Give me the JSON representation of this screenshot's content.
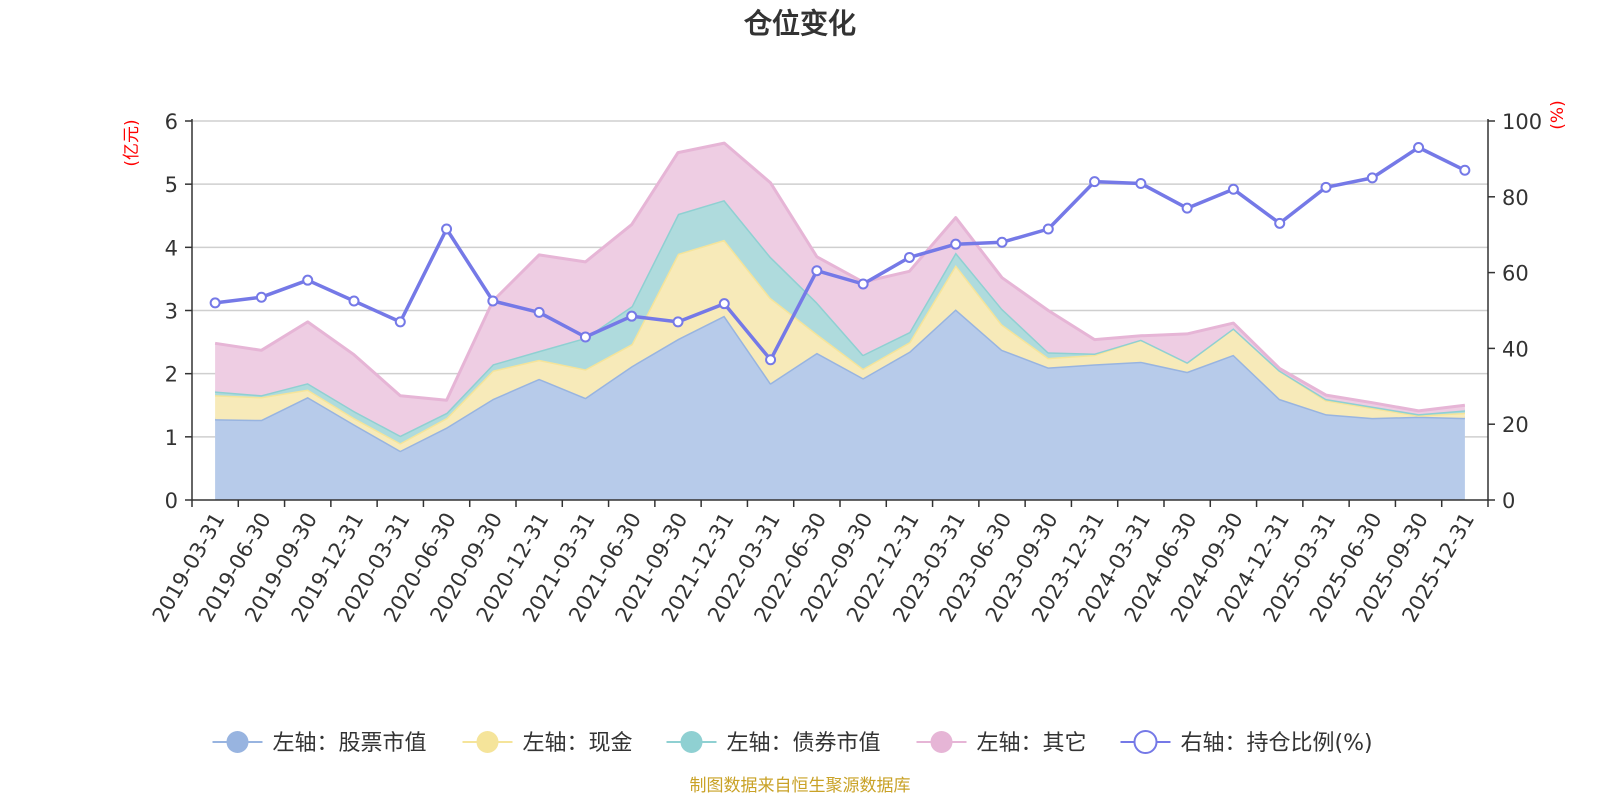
{
  "chart_data": {
    "type": "area",
    "title": "仓位变化",
    "source": "制图数据来自恒生聚源数据库",
    "left_axis": {
      "unit": "(亿元)",
      "ylim": [
        0,
        6
      ],
      "ticks": [
        "0",
        "1",
        "2",
        "3",
        "4",
        "5",
        "6"
      ]
    },
    "right_axis": {
      "unit": "(%)",
      "ylim": [
        0,
        100
      ],
      "ticks": [
        "0",
        "20",
        "40",
        "60",
        "80",
        "100"
      ]
    },
    "categories": [
      "2019-03-31",
      "2019-06-30",
      "2019-09-30",
      "2019-12-31",
      "2020-03-31",
      "2020-06-30",
      "2020-09-30",
      "2020-12-31",
      "2021-03-31",
      "2021-06-30",
      "2021-09-30",
      "2021-12-31",
      "2022-03-31",
      "2022-06-30",
      "2022-09-30",
      "2022-12-31",
      "2023-03-31",
      "2023-06-30",
      "2023-09-30",
      "2023-12-31",
      "2024-03-31",
      "2024-06-30",
      "2024-09-30",
      "2024-12-31",
      "2025-03-31",
      "2025-06-30",
      "2025-09-30",
      "2025-12-31"
    ],
    "series": [
      {
        "name": "左轴：股票市值",
        "axis": "left",
        "kind": "area",
        "line_color": "#98b4e0",
        "fill_color": "#b7cbea",
        "values": [
          1.28,
          1.27,
          1.63,
          1.2,
          0.78,
          1.15,
          1.6,
          1.92,
          1.62,
          2.12,
          2.55,
          2.92,
          1.85,
          2.33,
          1.93,
          2.35,
          3.02,
          2.38,
          2.1,
          2.15,
          2.19,
          2.03,
          2.3,
          1.6,
          1.36,
          1.3,
          1.32,
          1.3
        ]
      },
      {
        "name": "左轴：现金",
        "axis": "left",
        "kind": "area",
        "line_color": "#f5e49a",
        "fill_color": "#f7eab9",
        "values": [
          0.38,
          0.36,
          0.12,
          0.1,
          0.12,
          0.15,
          0.45,
          0.3,
          0.45,
          0.35,
          1.35,
          1.2,
          1.35,
          0.3,
          0.15,
          0.15,
          0.7,
          0.4,
          0.15,
          0.15,
          0.35,
          0.15,
          0.42,
          0.45,
          0.22,
          0.16,
          0.02,
          0.08
        ]
      },
      {
        "name": "左轴：债券市值",
        "axis": "left",
        "kind": "area",
        "line_color": "#8fd0d2",
        "fill_color": "#afdbdd",
        "values": [
          0.06,
          0.03,
          0.1,
          0.11,
          0.12,
          0.08,
          0.1,
          0.14,
          0.5,
          0.6,
          0.63,
          0.63,
          0.65,
          0.5,
          0.22,
          0.16,
          0.2,
          0.25,
          0.09,
          0.02,
          0.0,
          0.0,
          0.0,
          0.0,
          0.02,
          0.02,
          0.02,
          0.04
        ]
      },
      {
        "name": "左轴：其它",
        "axis": "left",
        "kind": "area",
        "line_color": "#e6b5d6",
        "fill_color": "#eecde3",
        "values": [
          0.76,
          0.71,
          0.97,
          0.89,
          0.63,
          0.2,
          1.0,
          1.52,
          1.2,
          1.29,
          0.97,
          0.9,
          1.17,
          0.72,
          1.15,
          0.96,
          0.55,
          0.49,
          0.66,
          0.22,
          0.06,
          0.45,
          0.08,
          0.03,
          0.06,
          0.06,
          0.05,
          0.08
        ]
      },
      {
        "name": "右轴：持仓比例(%)",
        "axis": "right",
        "kind": "line",
        "line_color": "#7579e7",
        "fill_color": "#ffffff",
        "values": [
          52,
          53.5,
          58,
          52.5,
          47,
          71.5,
          52.5,
          49.5,
          43,
          48.5,
          47,
          51.8,
          37,
          60.5,
          57,
          64,
          67.5,
          68,
          71.5,
          84,
          83.5,
          77,
          82,
          73,
          82.5,
          85,
          93,
          87
        ]
      }
    ]
  }
}
